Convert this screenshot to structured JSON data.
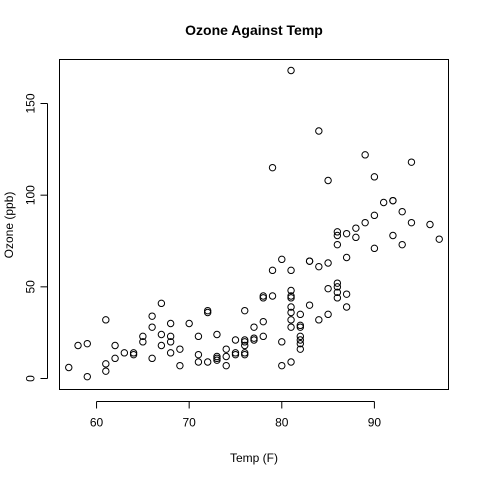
{
  "chart_data": {
    "type": "scatter",
    "title": "Ozone Against Temp",
    "xlabel": "Temp (F)",
    "ylabel": "Ozone (ppb)",
    "xlim": [
      56,
      98
    ],
    "ylim": [
      -6,
      174
    ],
    "x_ticks": [
      60,
      70,
      80,
      90
    ],
    "y_ticks": [
      0,
      50,
      100,
      150
    ],
    "x_tick_labels": [
      "60",
      "70",
      "80",
      "90"
    ],
    "y_tick_labels": [
      "0",
      "50",
      "100",
      "150"
    ],
    "grid": false,
    "marker": "open-circle",
    "points": [
      [
        57,
        6
      ],
      [
        58,
        18
      ],
      [
        59,
        19
      ],
      [
        59,
        1
      ],
      [
        61,
        32
      ],
      [
        61,
        4
      ],
      [
        61,
        8
      ],
      [
        62,
        18
      ],
      [
        62,
        11
      ],
      [
        63,
        14
      ],
      [
        64,
        14
      ],
      [
        64,
        13
      ],
      [
        65,
        20
      ],
      [
        65,
        23
      ],
      [
        66,
        11
      ],
      [
        66,
        28
      ],
      [
        66,
        34
      ],
      [
        67,
        41
      ],
      [
        67,
        18
      ],
      [
        67,
        24
      ],
      [
        68,
        30
      ],
      [
        68,
        20
      ],
      [
        68,
        14
      ],
      [
        68,
        23
      ],
      [
        69,
        7
      ],
      [
        69,
        16
      ],
      [
        70,
        30
      ],
      [
        71,
        23
      ],
      [
        71,
        13
      ],
      [
        71,
        9
      ],
      [
        72,
        36
      ],
      [
        72,
        37
      ],
      [
        72,
        9
      ],
      [
        73,
        10
      ],
      [
        73,
        12
      ],
      [
        73,
        24
      ],
      [
        73,
        11
      ],
      [
        74,
        7
      ],
      [
        74,
        12
      ],
      [
        74,
        16
      ],
      [
        75,
        21
      ],
      [
        75,
        13
      ],
      [
        75,
        14
      ],
      [
        76,
        21
      ],
      [
        76,
        13
      ],
      [
        76,
        18
      ],
      [
        76,
        20
      ],
      [
        76,
        37
      ],
      [
        76,
        14
      ],
      [
        77,
        22
      ],
      [
        77,
        21
      ],
      [
        77,
        28
      ],
      [
        78,
        45
      ],
      [
        78,
        44
      ],
      [
        78,
        31
      ],
      [
        78,
        23
      ],
      [
        79,
        115
      ],
      [
        79,
        45
      ],
      [
        79,
        59
      ],
      [
        80,
        65
      ],
      [
        80,
        20
      ],
      [
        80,
        7
      ],
      [
        81,
        168
      ],
      [
        81,
        48
      ],
      [
        81,
        45
      ],
      [
        81,
        44
      ],
      [
        81,
        39
      ],
      [
        81,
        36
      ],
      [
        81,
        32
      ],
      [
        81,
        28
      ],
      [
        81,
        9
      ],
      [
        81,
        59
      ],
      [
        82,
        35
      ],
      [
        82,
        29
      ],
      [
        82,
        28
      ],
      [
        82,
        23
      ],
      [
        82,
        21
      ],
      [
        82,
        19
      ],
      [
        82,
        16
      ],
      [
        83,
        64
      ],
      [
        83,
        64
      ],
      [
        83,
        40
      ],
      [
        84,
        135
      ],
      [
        84,
        61
      ],
      [
        84,
        32
      ],
      [
        85,
        108
      ],
      [
        85,
        63
      ],
      [
        85,
        49
      ],
      [
        85,
        35
      ],
      [
        86,
        80
      ],
      [
        86,
        78
      ],
      [
        86,
        73
      ],
      [
        86,
        52
      ],
      [
        86,
        50
      ],
      [
        86,
        47
      ],
      [
        86,
        44
      ],
      [
        87,
        79
      ],
      [
        87,
        66
      ],
      [
        87,
        46
      ],
      [
        87,
        39
      ],
      [
        88,
        82
      ],
      [
        88,
        77
      ],
      [
        89,
        122
      ],
      [
        89,
        85
      ],
      [
        90,
        110
      ],
      [
        90,
        89
      ],
      [
        90,
        71
      ],
      [
        91,
        96
      ],
      [
        92,
        97
      ],
      [
        92,
        97
      ],
      [
        92,
        78
      ],
      [
        93,
        91
      ],
      [
        93,
        73
      ],
      [
        94,
        118
      ],
      [
        94,
        85
      ],
      [
        96,
        84
      ],
      [
        97,
        76
      ]
    ]
  }
}
